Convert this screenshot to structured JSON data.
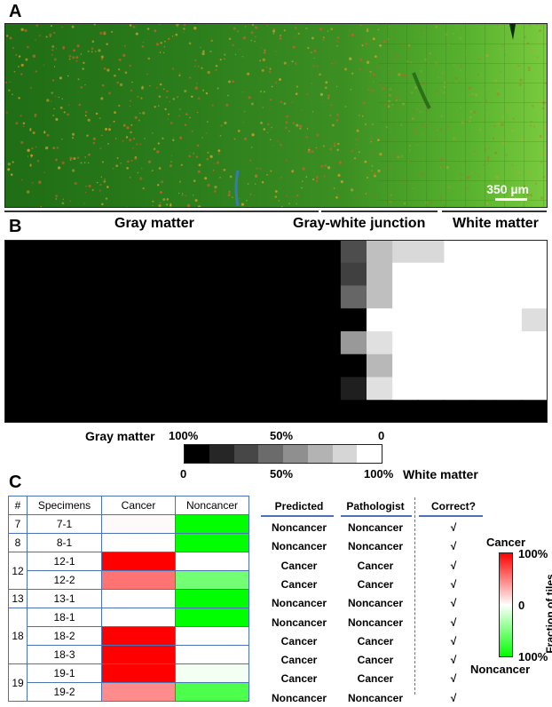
{
  "panels": {
    "a": "A",
    "b": "B",
    "c": "C"
  },
  "panel_a": {
    "scale_bar_label": "350 µm"
  },
  "regions": {
    "gray": "Gray matter",
    "junction": "Gray-white junction",
    "white": "White matter"
  },
  "heatmap_b": {
    "rows": 8,
    "cols": 21,
    "cell_values": [
      [
        0,
        0,
        0,
        0,
        0,
        0,
        0,
        0,
        0,
        0,
        0,
        0,
        0,
        0.3,
        0.75,
        0.85,
        0.85,
        1,
        1,
        1,
        1
      ],
      [
        0,
        0,
        0,
        0,
        0,
        0,
        0,
        0,
        0,
        0,
        0,
        0,
        0,
        0.25,
        0.75,
        1,
        1,
        1,
        1,
        1,
        1
      ],
      [
        0,
        0,
        0,
        0,
        0,
        0,
        0,
        0,
        0,
        0,
        0,
        0,
        0,
        0.4,
        0.75,
        1,
        1,
        1,
        1,
        1,
        1
      ],
      [
        0,
        0,
        0,
        0,
        0,
        0,
        0,
        0,
        0,
        0,
        0,
        0,
        0,
        0,
        1,
        1,
        1,
        1,
        1,
        1,
        1
      ],
      [
        0,
        0,
        0,
        0,
        0,
        0,
        0,
        0,
        0,
        0,
        0,
        0,
        0,
        0.6,
        0.88,
        1,
        1,
        1,
        1,
        1,
        1
      ],
      [
        0,
        0,
        0,
        0,
        0,
        0,
        0,
        0,
        0,
        0,
        0,
        0,
        0,
        0,
        0.72,
        1,
        1,
        1,
        1,
        1,
        1
      ],
      [
        0,
        0,
        0,
        0,
        0,
        0,
        0,
        0,
        0,
        0,
        0,
        0,
        0,
        0.12,
        0.88,
        1,
        1,
        1,
        1,
        1,
        1
      ],
      [
        0,
        0,
        0,
        0,
        0,
        0,
        0,
        0,
        0,
        0,
        0,
        0,
        0,
        0,
        0,
        0,
        0,
        0,
        0,
        0,
        0
      ]
    ],
    "overrides": [
      {
        "row": 3,
        "col": 20,
        "value": 0.87
      }
    ]
  },
  "scale_b": {
    "gray_label": "Gray matter",
    "white_label": "White matter",
    "top_ticks": [
      "100%",
      "50%",
      "0"
    ],
    "bottom_ticks": [
      "0",
      "50%",
      "100%"
    ],
    "swatches": [
      "#000000",
      "#262626",
      "#474747",
      "#6b6b6b",
      "#8f8f8f",
      "#b3b3b3",
      "#d6d6d6",
      "#ffffff"
    ]
  },
  "table_c": {
    "headers": [
      "#",
      "Specimens",
      "Cancer",
      "Noncancer"
    ],
    "groups": [
      {
        "id": "7",
        "rows": [
          {
            "specimen": "7-1",
            "cancer": 0.02,
            "noncancer": 1.0
          }
        ]
      },
      {
        "id": "8",
        "rows": [
          {
            "specimen": "8-1",
            "cancer": 0.0,
            "noncancer": 1.0
          }
        ]
      },
      {
        "id": "12",
        "rows": [
          {
            "specimen": "12-1",
            "cancer": 1.0,
            "noncancer": 0.0
          },
          {
            "specimen": "12-2",
            "cancer": 0.55,
            "noncancer": 0.55
          }
        ]
      },
      {
        "id": "13",
        "rows": [
          {
            "specimen": "13-1",
            "cancer": 0.0,
            "noncancer": 1.0
          }
        ]
      },
      {
        "id": "18",
        "rows": [
          {
            "specimen": "18-1",
            "cancer": 0.0,
            "noncancer": 1.0
          },
          {
            "specimen": "18-2",
            "cancer": 1.0,
            "noncancer": 0.0
          },
          {
            "specimen": "18-3",
            "cancer": 1.0,
            "noncancer": 0.0
          }
        ]
      },
      {
        "id": "19",
        "rows": [
          {
            "specimen": "19-1",
            "cancer": 1.0,
            "noncancer": 0.05
          },
          {
            "specimen": "19-2",
            "cancer": 0.45,
            "noncancer": 0.7
          }
        ]
      }
    ]
  },
  "results_c": {
    "headers": {
      "predicted": "Predicted",
      "pathologist": "Pathologist",
      "correct": "Correct?"
    },
    "rows": [
      {
        "predicted": "Noncancer",
        "pathologist": "Noncancer",
        "correct": "√"
      },
      {
        "predicted": "Noncancer",
        "pathologist": "Noncancer",
        "correct": "√"
      },
      {
        "predicted": "Cancer",
        "pathologist": "Cancer",
        "correct": "√"
      },
      {
        "predicted": "Cancer",
        "pathologist": "Cancer",
        "correct": "√"
      },
      {
        "predicted": "Noncancer",
        "pathologist": "Noncancer",
        "correct": "√"
      },
      {
        "predicted": "Noncancer",
        "pathologist": "Noncancer",
        "correct": "√"
      },
      {
        "predicted": "Cancer",
        "pathologist": "Cancer",
        "correct": "√"
      },
      {
        "predicted": "Cancer",
        "pathologist": "Cancer",
        "correct": "√"
      },
      {
        "predicted": "Cancer",
        "pathologist": "Cancer",
        "correct": "√"
      },
      {
        "predicted": "Noncancer",
        "pathologist": "Noncancer",
        "correct": "√"
      }
    ]
  },
  "colorbar_c": {
    "top_label": "Cancer",
    "bottom_label": "Noncancer",
    "tick_top": "100%",
    "tick_mid": "0",
    "tick_bottom": "100%",
    "axis_label": "Fraction of tiles",
    "colors": {
      "cancer": "#ff0000",
      "neutral": "#ffffff",
      "noncancer": "#00ff00"
    }
  }
}
